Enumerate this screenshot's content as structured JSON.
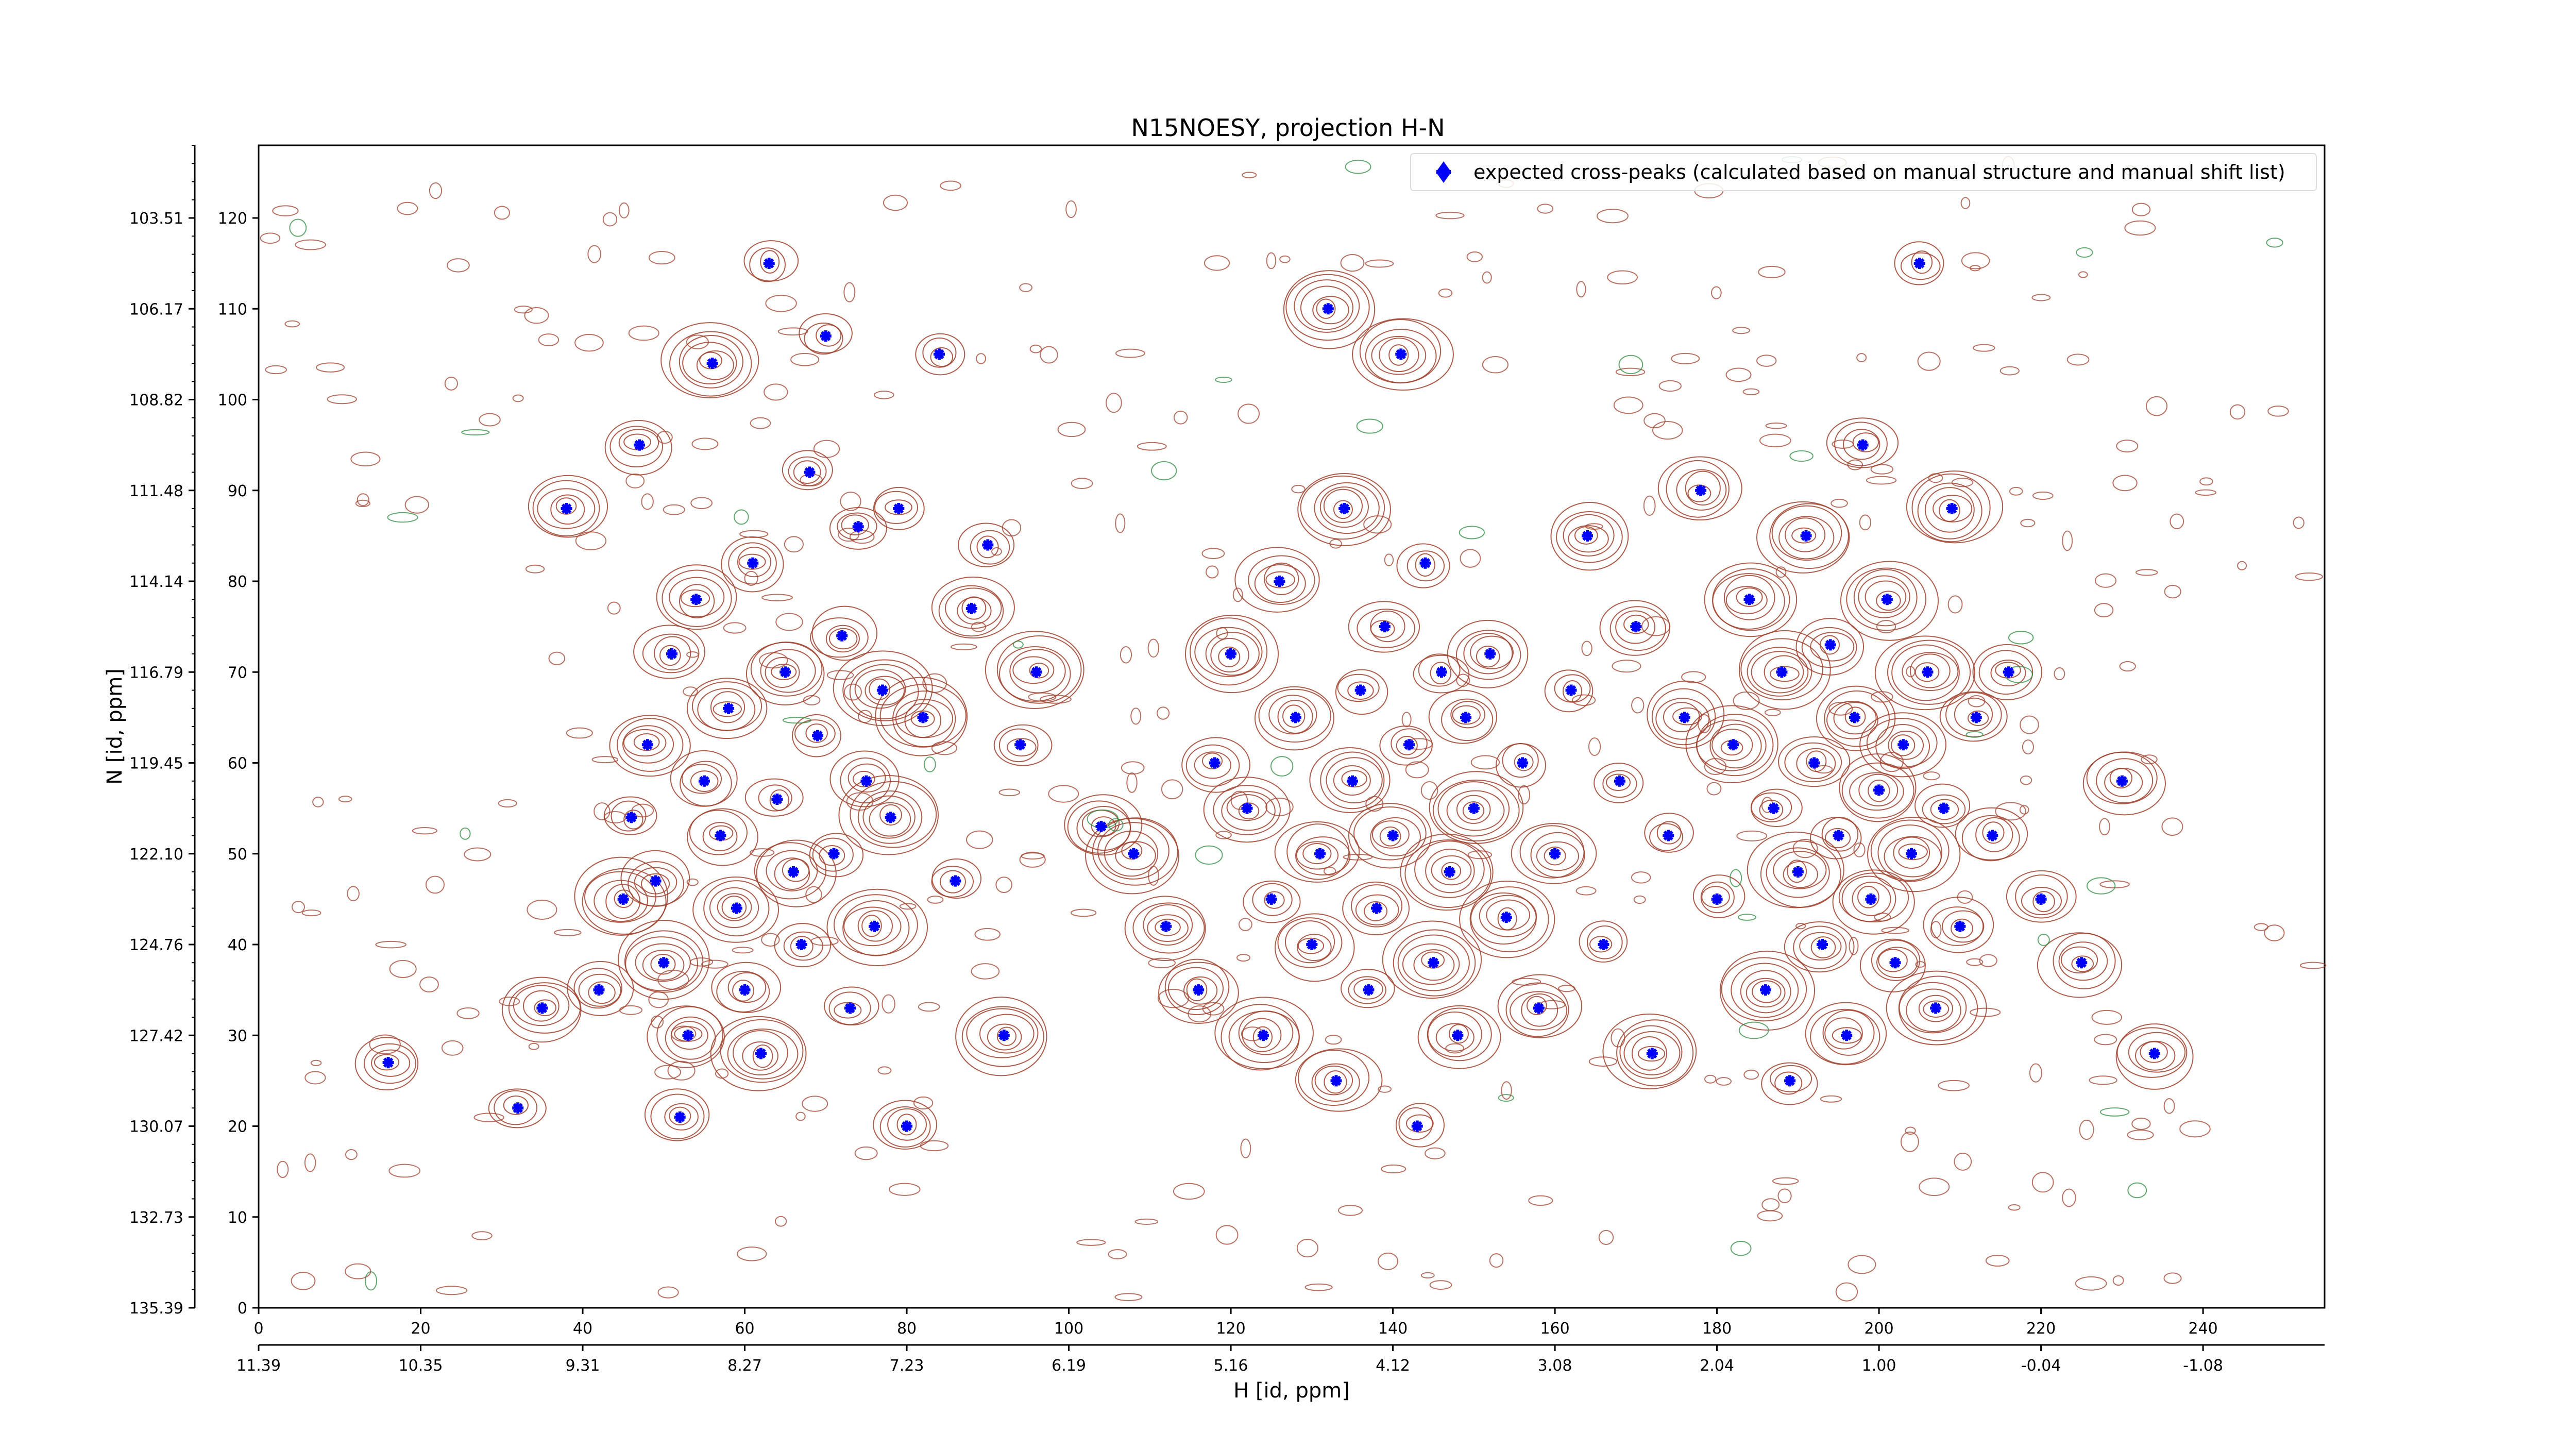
{
  "chart_data": {
    "type": "scatter",
    "title": "N15NOESY, projection H-N",
    "xlabel": "H [id, ppm]",
    "ylabel": "N [id, ppm]",
    "xlim": [
      0,
      255
    ],
    "ylim": [
      0,
      128
    ],
    "x_ticks": [
      "0",
      "20",
      "40",
      "60",
      "80",
      "100",
      "120",
      "140",
      "160",
      "180",
      "200",
      "220",
      "240"
    ],
    "x_ppm_ticks": [
      "11.39",
      "10.35",
      "9.31",
      "8.27",
      "7.23",
      "6.19",
      "5.16",
      "4.12",
      "3.08",
      "2.04",
      "1.00",
      "-0.04",
      "-1.08"
    ],
    "y_ticks": [
      "0",
      "10",
      "20",
      "30",
      "40",
      "50",
      "60",
      "70",
      "80",
      "90",
      "100",
      "110",
      "120"
    ],
    "y_ppm_ticks": [
      "135.39",
      "132.73",
      "130.07",
      "127.42",
      "124.76",
      "122.10",
      "119.45",
      "116.79",
      "114.14",
      "111.48",
      "108.82",
      "106.17",
      "103.51"
    ],
    "legend": {
      "label": "expected cross-peaks (calculated based on manual structure and manual shift list)",
      "position": "top-right"
    },
    "grid": false,
    "colors": {
      "points": "#0000ff",
      "contour_positive": "#a0412d",
      "contour_negative": "#2e8b40"
    },
    "series": [
      {
        "name": "expected cross-peaks (calculated based on manual structure and manual shift list)",
        "points": [
          [
            16,
            27
          ],
          [
            32,
            22
          ],
          [
            35,
            33
          ],
          [
            38,
            88
          ],
          [
            42,
            35
          ],
          [
            45,
            45
          ],
          [
            46,
            54
          ],
          [
            47,
            95
          ],
          [
            48,
            62
          ],
          [
            49,
            47
          ],
          [
            50,
            38
          ],
          [
            51,
            72
          ],
          [
            52,
            21
          ],
          [
            53,
            30
          ],
          [
            54,
            78
          ],
          [
            55,
            58
          ],
          [
            56,
            104
          ],
          [
            57,
            52
          ],
          [
            58,
            66
          ],
          [
            59,
            44
          ],
          [
            60,
            35
          ],
          [
            61,
            82
          ],
          [
            62,
            28
          ],
          [
            63,
            115
          ],
          [
            64,
            56
          ],
          [
            65,
            70
          ],
          [
            66,
            48
          ],
          [
            67,
            40
          ],
          [
            68,
            92
          ],
          [
            69,
            63
          ],
          [
            70,
            107
          ],
          [
            71,
            50
          ],
          [
            72,
            74
          ],
          [
            73,
            33
          ],
          [
            74,
            86
          ],
          [
            75,
            58
          ],
          [
            76,
            42
          ],
          [
            77,
            68
          ],
          [
            78,
            54
          ],
          [
            79,
            88
          ],
          [
            80,
            20
          ],
          [
            82,
            65
          ],
          [
            84,
            105
          ],
          [
            86,
            47
          ],
          [
            88,
            77
          ],
          [
            90,
            84
          ],
          [
            92,
            30
          ],
          [
            94,
            62
          ],
          [
            96,
            70
          ],
          [
            104,
            53
          ],
          [
            108,
            50
          ],
          [
            112,
            42
          ],
          [
            116,
            35
          ],
          [
            118,
            60
          ],
          [
            120,
            72
          ],
          [
            122,
            55
          ],
          [
            124,
            30
          ],
          [
            125,
            45
          ],
          [
            126,
            80
          ],
          [
            128,
            65
          ],
          [
            130,
            40
          ],
          [
            131,
            50
          ],
          [
            132,
            110
          ],
          [
            133,
            25
          ],
          [
            134,
            88
          ],
          [
            135,
            58
          ],
          [
            136,
            68
          ],
          [
            137,
            35
          ],
          [
            138,
            44
          ],
          [
            139,
            75
          ],
          [
            140,
            52
          ],
          [
            141,
            105
          ],
          [
            142,
            62
          ],
          [
            143,
            20
          ],
          [
            144,
            82
          ],
          [
            145,
            38
          ],
          [
            146,
            70
          ],
          [
            147,
            48
          ],
          [
            148,
            30
          ],
          [
            149,
            65
          ],
          [
            150,
            55
          ],
          [
            152,
            72
          ],
          [
            154,
            43
          ],
          [
            156,
            60
          ],
          [
            158,
            33
          ],
          [
            160,
            50
          ],
          [
            162,
            68
          ],
          [
            164,
            85
          ],
          [
            166,
            40
          ],
          [
            168,
            58
          ],
          [
            170,
            75
          ],
          [
            172,
            28
          ],
          [
            174,
            52
          ],
          [
            176,
            65
          ],
          [
            178,
            90
          ],
          [
            180,
            45
          ],
          [
            182,
            62
          ],
          [
            184,
            78
          ],
          [
            186,
            35
          ],
          [
            187,
            55
          ],
          [
            188,
            70
          ],
          [
            189,
            25
          ],
          [
            190,
            48
          ],
          [
            191,
            85
          ],
          [
            192,
            60
          ],
          [
            193,
            40
          ],
          [
            194,
            73
          ],
          [
            195,
            52
          ],
          [
            196,
            30
          ],
          [
            197,
            65
          ],
          [
            198,
            95
          ],
          [
            199,
            45
          ],
          [
            200,
            57
          ],
          [
            201,
            78
          ],
          [
            202,
            38
          ],
          [
            203,
            62
          ],
          [
            204,
            50
          ],
          [
            205,
            115
          ],
          [
            206,
            70
          ],
          [
            207,
            33
          ],
          [
            208,
            55
          ],
          [
            209,
            88
          ],
          [
            210,
            42
          ],
          [
            212,
            65
          ],
          [
            214,
            52
          ],
          [
            216,
            70
          ],
          [
            220,
            45
          ],
          [
            225,
            38
          ],
          [
            230,
            58
          ],
          [
            234,
            28
          ]
        ]
      }
    ]
  }
}
